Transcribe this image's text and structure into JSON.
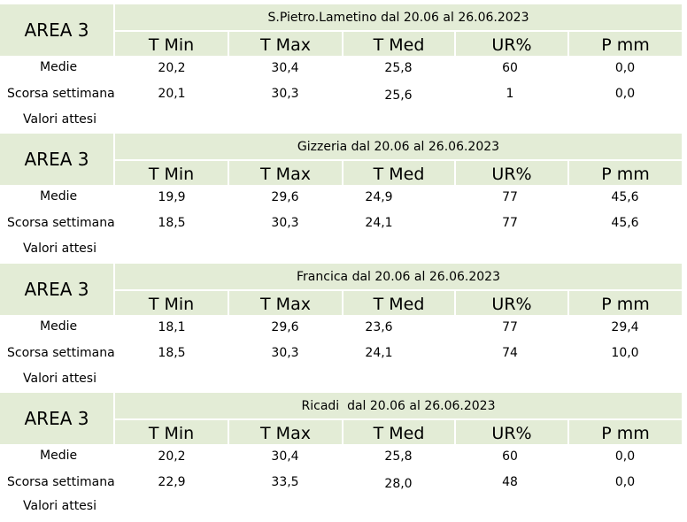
{
  "columns": [
    "T Min",
    "T Max",
    "T Med",
    "UR%",
    "P mm"
  ],
  "row_labels": [
    "Medie",
    "Scorsa settimana",
    "Valori attesi"
  ],
  "sections": [
    {
      "area": "AREA 3",
      "title": "S.Pietro.Lametino dal 20.06 al 26.06.2023",
      "medie": [
        "20,2",
        "30,4",
        "25,8",
        "60",
        "0,0"
      ],
      "scorsa": [
        "20,1",
        "30,3",
        "25,6",
        "1",
        "0,0"
      ]
    },
    {
      "area": "AREA 3",
      "title": "Gizzeria dal 20.06 al 26.06.2023",
      "medie": [
        "19,9",
        "29,6",
        "24,9",
        "77",
        "45,6"
      ],
      "scorsa": [
        "18,5",
        "30,3",
        "24,1",
        "77",
        "45,6"
      ]
    },
    {
      "area": "AREA 3",
      "title": "Francica dal 20.06 al 26.06.2023",
      "medie": [
        "18,1",
        "29,6",
        "23,6",
        "77",
        "29,4"
      ],
      "scorsa": [
        "18,5",
        "30,3",
        "24,1",
        "74",
        "10,0"
      ]
    },
    {
      "area": "AREA 3",
      "title": "Ricadi  dal 20.06 al 26.06.2023",
      "medie": [
        "20,2",
        "30,4",
        "25,8",
        "60",
        "0,0"
      ],
      "scorsa": [
        "22,9",
        "33,5",
        "28,0",
        "48",
        "0,0"
      ]
    }
  ]
}
